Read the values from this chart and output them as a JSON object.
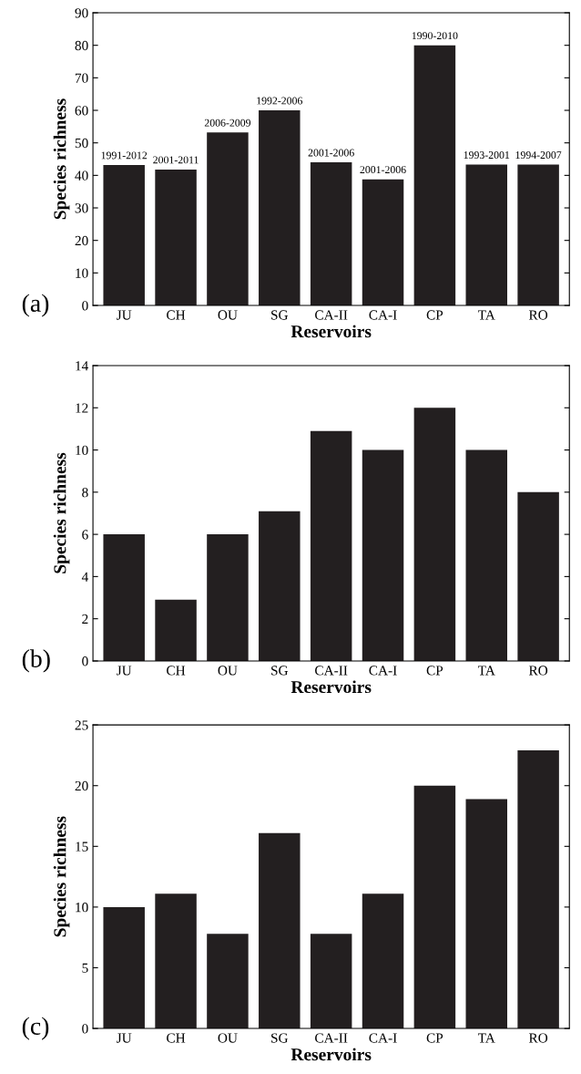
{
  "chart_data": [
    {
      "type": "bar",
      "xlabel": "Reservoirs",
      "ylabel": "Species richness",
      "categories": [
        "JU",
        "CH",
        "OU",
        "SG",
        "CA-II",
        "CA-I",
        "CP",
        "TA",
        "RO"
      ],
      "values": [
        43.2,
        41.8,
        53.2,
        60,
        44,
        38.8,
        80,
        43.3,
        43.3
      ],
      "color": "#231f20",
      "value_labels": [
        "1991-2012",
        "2001-2011",
        "2006-2009",
        "1992-2006",
        "2001-2006",
        "2001-2006",
        "1990-2010",
        "1993-2001",
        "1994-2007"
      ],
      "ylim": [
        0,
        90
      ],
      "yticks": [
        0,
        10,
        20,
        30,
        40,
        50,
        60,
        70,
        80,
        90
      ],
      "grid": false,
      "annotations": [
        "(a)"
      ]
    },
    {
      "type": "bar",
      "xlabel": "Reservoirs",
      "ylabel": "Species richness",
      "categories": [
        "JU",
        "CH",
        "OU",
        "SG",
        "CA-II",
        "CA-I",
        "CP",
        "TA",
        "RO"
      ],
      "values": [
        6,
        2.9,
        6,
        7.1,
        10.9,
        10,
        12,
        10,
        8
      ],
      "color": "#231f20",
      "ylim": [
        0,
        14
      ],
      "yticks": [
        0,
        2,
        4,
        6,
        8,
        10,
        12,
        14
      ],
      "grid": false,
      "annotations": [
        "(b)"
      ]
    },
    {
      "type": "bar",
      "xlabel": "Reservoirs",
      "ylabel": "Species richness",
      "categories": [
        "JU",
        "CH",
        "OU",
        "SG",
        "CA-II",
        "CA-I",
        "CP",
        "TA",
        "RO"
      ],
      "values": [
        10,
        11.1,
        7.8,
        16.1,
        7.8,
        11.1,
        20,
        18.9,
        22.9
      ],
      "color": "#231f20",
      "ylim": [
        0,
        25
      ],
      "yticks": [
        0,
        5,
        10,
        15,
        20,
        25
      ],
      "grid": false,
      "annotations": [
        "(c)"
      ]
    }
  ]
}
